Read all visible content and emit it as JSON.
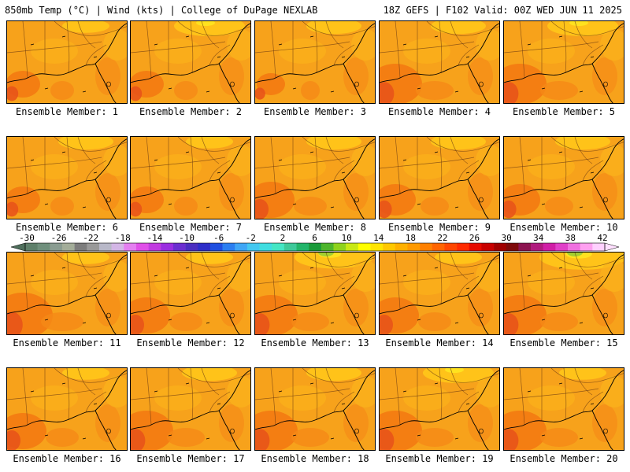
{
  "header": {
    "title_left": "850mb Temp (°C) | Wind (kts) | College of DuPage NEXLAB",
    "title_right": "18Z GEFS | F102 Valid: 00Z WED JUN 11 2025"
  },
  "members": [
    {
      "label": "Ensemble Member: 1",
      "hot": 0.3,
      "cool": 0.2
    },
    {
      "label": "Ensemble Member: 2",
      "hot": 0.3,
      "cool": 0.5
    },
    {
      "label": "Ensemble Member: 3",
      "hot": 0.2,
      "cool": 0.3
    },
    {
      "label": "Ensemble Member: 4",
      "hot": 0.6,
      "cool": 0.3
    },
    {
      "label": "Ensemble Member: 5",
      "hot": 0.6,
      "cool": 0.5
    },
    {
      "label": "Ensemble Member: 6",
      "hot": 0.3,
      "cool": 0.3
    },
    {
      "label": "Ensemble Member: 7",
      "hot": 0.3,
      "cool": 0.2
    },
    {
      "label": "Ensemble Member: 8",
      "hot": 0.5,
      "cool": 0.3
    },
    {
      "label": "Ensemble Member: 9",
      "hot": 0.4,
      "cool": 0.3
    },
    {
      "label": "Ensemble Member: 10",
      "hot": 0.4,
      "cool": 0.3
    },
    {
      "label": "Ensemble Member: 11",
      "hot": 0.7,
      "cool": 0.2
    },
    {
      "label": "Ensemble Member: 12",
      "hot": 0.5,
      "cool": 0.2
    },
    {
      "label": "Ensemble Member: 13",
      "hot": 0.6,
      "cool": 0.6
    },
    {
      "label": "Ensemble Member: 14",
      "hot": 0.5,
      "cool": 0.2
    },
    {
      "label": "Ensemble Member: 15",
      "hot": 0.6,
      "cool": 0.7
    },
    {
      "label": "Ensemble Member: 16",
      "hot": 0.5,
      "cool": 0.2
    },
    {
      "label": "Ensemble Member: 17",
      "hot": 0.6,
      "cool": 0.3
    },
    {
      "label": "Ensemble Member: 18",
      "hot": 0.6,
      "cool": 0.3
    },
    {
      "label": "Ensemble Member: 19",
      "hot": 0.6,
      "cool": 0.5
    },
    {
      "label": "Ensemble Member: 20",
      "hot": 0.6,
      "cool": 0.2
    }
  ],
  "colorbar": {
    "labels": [
      "-30",
      "-26",
      "-22",
      "-18",
      "-14",
      "-10",
      "-6",
      "-2",
      "2",
      "6",
      "10",
      "14",
      "18",
      "22",
      "26",
      "30",
      "34",
      "38",
      "42"
    ],
    "colors": [
      "#5e7f6a",
      "#6f8f7c",
      "#8a9c91",
      "#a3ad99",
      "#7c7c7c",
      "#999999",
      "#b8b8c8",
      "#d3b6e6",
      "#e47ff0",
      "#e04fe8",
      "#c13be0",
      "#9a2ee0",
      "#6b2ed0",
      "#4b2ec0",
      "#2e2ec8",
      "#1f4fe0",
      "#2b7ef0",
      "#3fa6f5",
      "#44c8f0",
      "#3fdde0",
      "#44e6c4",
      "#3ec99a",
      "#22b56a",
      "#1a9a3a",
      "#4db52c",
      "#8ed21c",
      "#c8e814",
      "#ffff00",
      "#ffe400",
      "#ffc800",
      "#ffb000",
      "#ff9a00",
      "#ff8000",
      "#ff6400",
      "#ff4600",
      "#ff2a00",
      "#e60a00",
      "#c80000",
      "#a00000",
      "#7e0a0a",
      "#8c1450",
      "#b01a7e",
      "#d01ea6",
      "#e040c8",
      "#f070e0",
      "#ffa0f0",
      "#ffd0ff"
    ]
  }
}
